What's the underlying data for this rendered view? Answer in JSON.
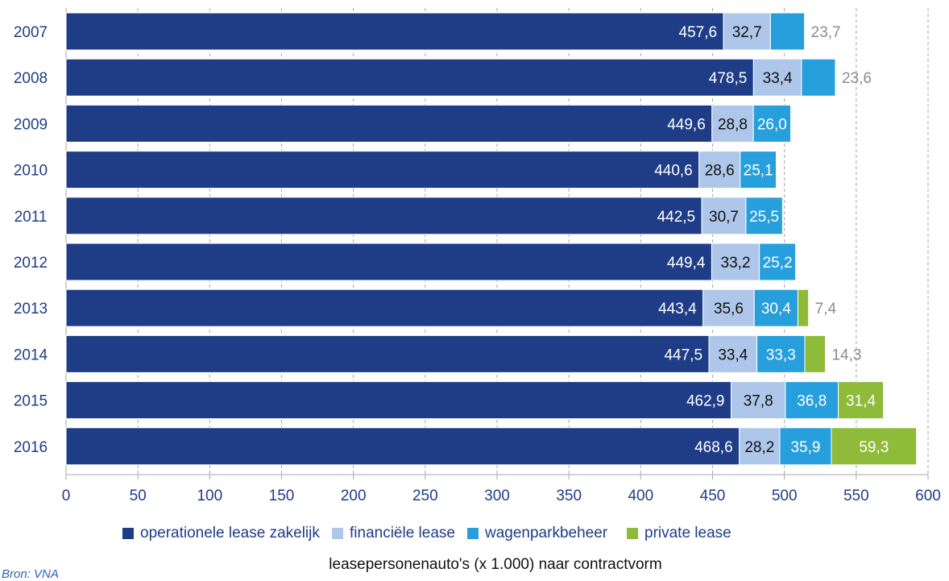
{
  "chart_data": {
    "type": "bar",
    "orientation": "horizontal",
    "stacked": true,
    "title": "leasepersonenauto's (x 1.000) naar contractvorm",
    "xlabel": "",
    "ylabel": "",
    "xlim": [
      0,
      600
    ],
    "x_ticks": [
      "0",
      "50",
      "100",
      "150",
      "200",
      "250",
      "300",
      "350",
      "400",
      "450",
      "500",
      "550",
      "600"
    ],
    "grid": "vertical dashed gridlines",
    "legend_position": "bottom",
    "categories": [
      "2007",
      "2008",
      "2009",
      "2010",
      "2011",
      "2012",
      "2013",
      "2014",
      "2015",
      "2016"
    ],
    "series": [
      {
        "name": "operationele lease zakelijk",
        "color": "#1f3d87",
        "values": [
          457.6,
          478.5,
          449.6,
          440.6,
          442.5,
          449.4,
          443.4,
          447.5,
          462.9,
          468.6
        ],
        "labels": [
          "457,6",
          "478,5",
          "449,6",
          "440,6",
          "442,5",
          "449,4",
          "443,4",
          "447,5",
          "462,9",
          "468,6"
        ]
      },
      {
        "name": "financiële lease",
        "color": "#aec6e9",
        "values": [
          32.7,
          33.4,
          28.8,
          28.6,
          30.7,
          33.2,
          35.6,
          33.4,
          37.8,
          28.2
        ],
        "labels": [
          "32,7",
          "33,4",
          "28,8",
          "28,6",
          "30,7",
          "33,2",
          "35,6",
          "33,4",
          "37,8",
          "28,2"
        ]
      },
      {
        "name": "wagenparkbeheer",
        "color": "#279fdd",
        "values": [
          23.7,
          23.6,
          26.0,
          25.1,
          25.5,
          25.2,
          30.4,
          33.3,
          36.8,
          35.9
        ],
        "labels": [
          "23,7",
          "23,6",
          "26,0",
          "25,1",
          "25,5",
          "25,2",
          "30,4",
          "33,3",
          "36,8",
          "35,9"
        ]
      },
      {
        "name": "private lease",
        "color": "#8fbb3a",
        "values": [
          null,
          null,
          null,
          null,
          null,
          null,
          7.4,
          14.3,
          31.4,
          59.3
        ],
        "labels": [
          null,
          null,
          null,
          null,
          null,
          null,
          "7,4",
          "14,3",
          "31,4",
          "59,3"
        ]
      }
    ],
    "source": "Bron: VNA"
  }
}
